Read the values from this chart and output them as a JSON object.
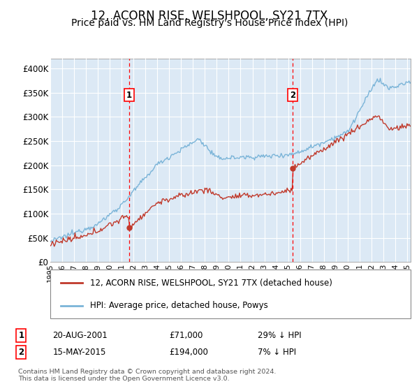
{
  "title": "12, ACORN RISE, WELSHPOOL, SY21 7TX",
  "subtitle": "Price paid vs. HM Land Registry's House Price Index (HPI)",
  "title_fontsize": 12,
  "subtitle_fontsize": 10,
  "ylabel_ticks": [
    "£0",
    "£50K",
    "£100K",
    "£150K",
    "£200K",
    "£250K",
    "£300K",
    "£350K",
    "£400K"
  ],
  "ylim": [
    0,
    420000
  ],
  "xlim_start": 1995.0,
  "xlim_end": 2025.3,
  "bg_color": "#dce9f5",
  "hpi_color": "#7ab4d8",
  "price_color": "#c0392b",
  "grid_color": "#ffffff",
  "sale1_x": 2001.64,
  "sale1_y": 71000,
  "sale1_label": "1",
  "sale1_date": "20-AUG-2001",
  "sale1_price": "£71,000",
  "sale1_hpi": "29% ↓ HPI",
  "sale2_x": 2015.37,
  "sale2_y": 194000,
  "sale2_label": "2",
  "sale2_date": "15-MAY-2015",
  "sale2_price": "£194,000",
  "sale2_hpi": "7% ↓ HPI",
  "legend_line1": "12, ACORN RISE, WELSHPOOL, SY21 7TX (detached house)",
  "legend_line2": "HPI: Average price, detached house, Powys",
  "footnote": "Contains HM Land Registry data © Crown copyright and database right 2024.\nThis data is licensed under the Open Government Licence v3.0."
}
